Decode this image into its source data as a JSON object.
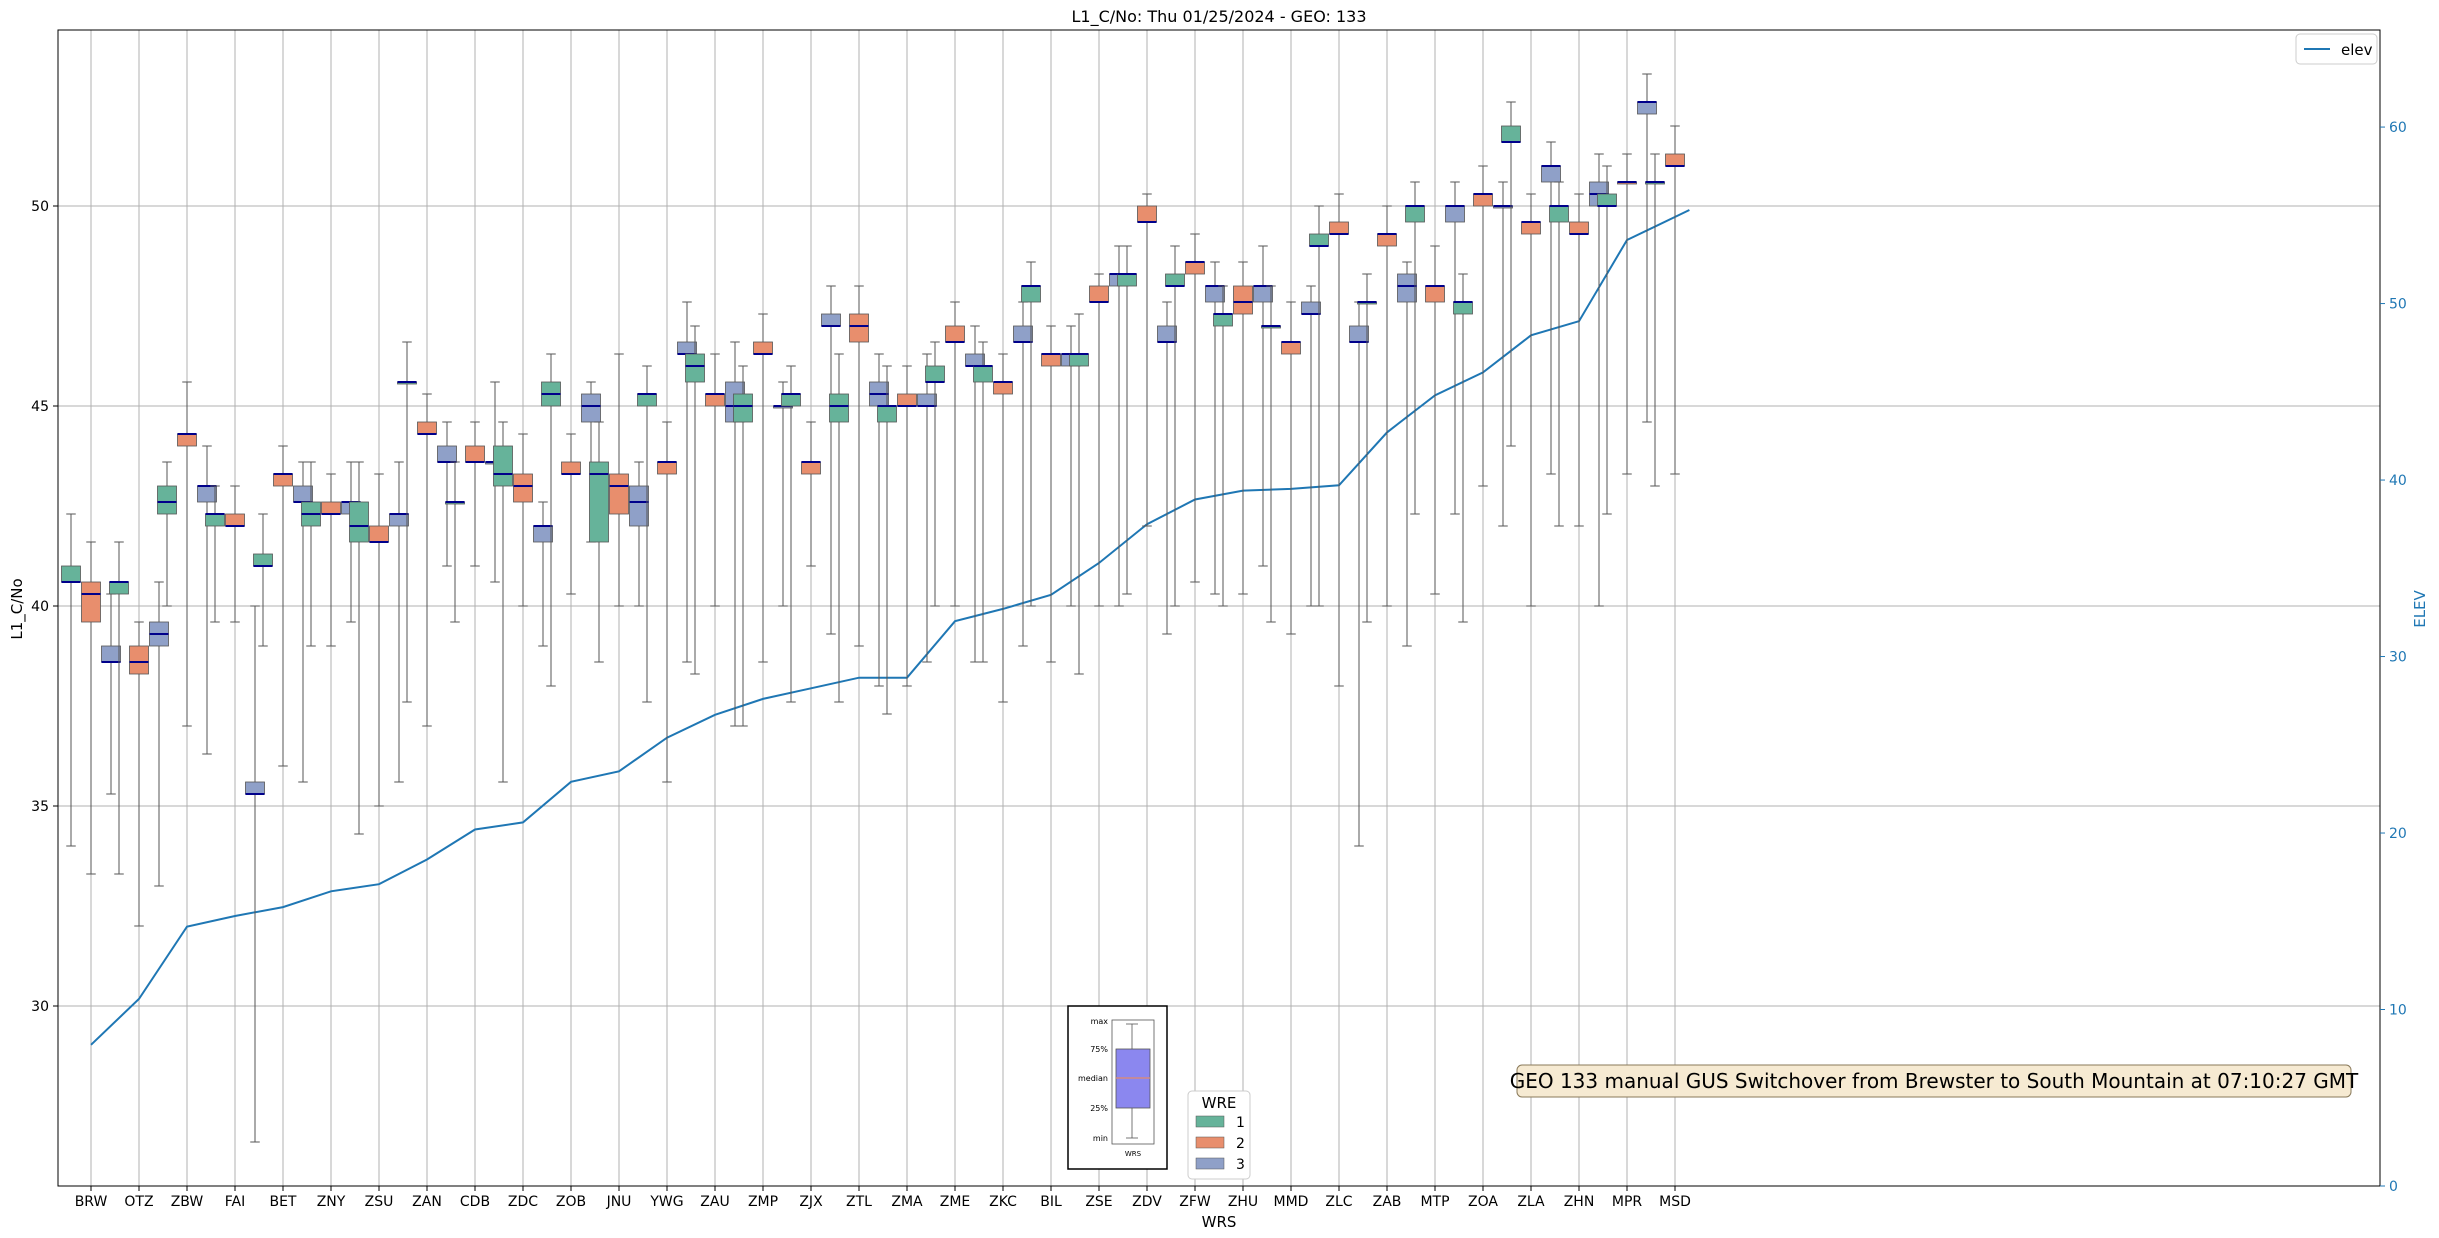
{
  "chart_data": {
    "type": "box",
    "title": "L1_C/No: Thu 01/25/2024 - GEO: 133",
    "xlabel": "WRS",
    "ylabel": "L1_C/No",
    "y2label": "ELEV",
    "ylim": [
      25.5,
      54.4
    ],
    "y2lim": [
      0,
      65.5
    ],
    "yticks": [
      30,
      35,
      40,
      45,
      50
    ],
    "y2ticks": [
      0,
      10,
      20,
      30,
      40,
      50,
      60
    ],
    "grid": true,
    "categories": [
      "BRW",
      "OTZ",
      "ZBW",
      "FAI",
      "BET",
      "ZNY",
      "ZSU",
      "ZAN",
      "CDB",
      "ZDC",
      "ZOB",
      "JNU",
      "YWG",
      "ZAU",
      "ZMP",
      "ZJX",
      "ZTL",
      "ZMA",
      "ZME",
      "ZKC",
      "BIL",
      "ZSE",
      "ZDV",
      "ZFW",
      "ZHU",
      "MMD",
      "ZLC",
      "ZAB",
      "MTP",
      "ZOA",
      "ZLA",
      "ZHN",
      "MPR",
      "MSD"
    ],
    "wre_colors": {
      "1": "#66b39a",
      "2": "#e88e6d",
      "3": "#8fa0c8"
    },
    "boxes": {
      "BRW": [
        [
          34.0,
          40.6,
          40.6,
          41.0,
          42.3
        ],
        [
          33.3,
          39.6,
          40.3,
          40.6,
          41.6
        ],
        [
          35.3,
          38.6,
          38.6,
          39.0,
          40.3
        ]
      ],
      "OTZ": [
        [
          33.3,
          40.3,
          40.6,
          40.6,
          41.6
        ],
        [
          32.0,
          38.3,
          38.6,
          39.0,
          39.6
        ],
        [
          33.0,
          39.0,
          39.3,
          39.6,
          40.6
        ]
      ],
      "ZBW": [
        [
          40.0,
          42.3,
          42.6,
          43.0,
          43.6
        ],
        [
          37.0,
          44.0,
          44.3,
          44.3,
          45.6
        ],
        [
          36.3,
          42.6,
          43.0,
          43.0,
          44.0
        ]
      ],
      "FAI": [
        [
          39.6,
          42.0,
          42.3,
          42.3,
          43.0
        ],
        [
          39.6,
          42.0,
          42.0,
          42.3,
          43.0
        ],
        [
          26.6,
          35.3,
          35.3,
          35.6,
          40.0
        ]
      ],
      "BET": [
        [
          39.0,
          41.0,
          41.0,
          41.3,
          42.3
        ],
        [
          36.0,
          43.0,
          43.3,
          43.3,
          44.0
        ],
        [
          35.6,
          42.6,
          42.6,
          43.0,
          43.6
        ]
      ],
      "ZNY": [
        [
          39.0,
          42.0,
          42.3,
          42.6,
          43.6
        ],
        [
          39.0,
          42.3,
          42.3,
          42.6,
          43.3
        ],
        [
          39.6,
          42.3,
          42.6,
          42.6,
          43.6
        ]
      ],
      "ZSU": [
        [
          34.3,
          41.6,
          42.0,
          42.6,
          43.6
        ],
        [
          35.0,
          41.6,
          41.6,
          42.0,
          43.3
        ],
        [
          35.6,
          42.0,
          42.3,
          42.3,
          43.6
        ]
      ],
      "ZAN": [
        [
          37.6,
          45.6,
          45.6,
          45.6,
          46.6
        ],
        [
          37.0,
          44.3,
          44.3,
          44.6,
          45.3
        ],
        [
          41.0,
          43.6,
          43.6,
          44.0,
          44.6
        ]
      ],
      "CDB": [
        [
          39.6,
          42.6,
          42.6,
          42.6,
          43.6
        ],
        [
          41.0,
          43.6,
          43.6,
          44.0,
          44.6
        ],
        [
          40.6,
          43.6,
          43.6,
          43.6,
          45.6
        ]
      ],
      "ZDC": [
        [
          35.6,
          43.0,
          43.3,
          44.0,
          44.6
        ],
        [
          40.0,
          42.6,
          43.0,
          43.3,
          44.3
        ],
        [
          39.0,
          41.6,
          42.0,
          42.0,
          42.6
        ]
      ],
      "ZOB": [
        [
          38.0,
          45.0,
          45.3,
          45.6,
          46.3
        ],
        [
          40.3,
          43.3,
          43.3,
          43.6,
          44.3
        ],
        [
          41.6,
          44.6,
          45.0,
          45.3,
          45.6
        ]
      ],
      "JNU": [
        [
          38.6,
          41.6,
          43.3,
          43.6,
          44.6
        ],
        [
          40.0,
          42.3,
          43.0,
          43.3,
          46.3
        ],
        [
          40.0,
          42.0,
          42.6,
          43.0,
          43.6
        ]
      ],
      "YWG": [
        [
          37.6,
          45.0,
          45.3,
          45.3,
          46.0
        ],
        [
          35.6,
          43.3,
          43.6,
          43.6,
          44.6
        ],
        [
          38.6,
          46.3,
          46.3,
          46.6,
          47.6
        ]
      ],
      "ZAU": [
        [
          38.3,
          45.6,
          46.0,
          46.3,
          47.0
        ],
        [
          40.0,
          45.0,
          45.3,
          45.3,
          46.3
        ],
        [
          37.0,
          44.6,
          45.0,
          45.6,
          46.6
        ]
      ],
      "ZMP": [
        [
          37.0,
          44.6,
          45.0,
          45.3,
          46.0
        ],
        [
          38.6,
          46.3,
          46.3,
          46.6,
          47.3
        ],
        [
          40.0,
          45.0,
          45.0,
          45.0,
          45.6
        ]
      ],
      "ZJX": [
        [
          37.6,
          45.0,
          45.3,
          45.3,
          46.0
        ],
        [
          41.0,
          43.3,
          43.6,
          43.6,
          44.6
        ],
        [
          39.3,
          47.0,
          47.0,
          47.3,
          48.0
        ]
      ],
      "ZTL": [
        [
          37.6,
          44.6,
          45.0,
          45.3,
          46.3
        ],
        [
          39.0,
          46.6,
          47.0,
          47.3,
          48.0
        ],
        [
          38.0,
          45.0,
          45.3,
          45.6,
          46.3
        ]
      ],
      "ZMA": [
        [
          37.3,
          44.6,
          45.0,
          45.0,
          46.0
        ],
        [
          38.0,
          45.0,
          45.0,
          45.3,
          46.0
        ],
        [
          38.6,
          45.0,
          45.0,
          45.3,
          46.3
        ]
      ],
      "ZME": [
        [
          40.0,
          45.6,
          45.6,
          46.0,
          46.6
        ],
        [
          40.0,
          46.6,
          46.6,
          47.0,
          47.6
        ],
        [
          38.6,
          46.0,
          46.0,
          46.3,
          47.0
        ]
      ],
      "ZKC": [
        [
          38.6,
          45.6,
          46.0,
          46.0,
          46.6
        ],
        [
          37.6,
          45.3,
          45.6,
          45.6,
          46.3
        ],
        [
          39.0,
          46.6,
          46.6,
          47.0,
          47.6
        ]
      ],
      "BIL": [
        [
          40.0,
          47.6,
          48.0,
          48.0,
          48.6
        ],
        [
          38.6,
          46.0,
          46.3,
          46.3,
          47.0
        ],
        [
          40.0,
          46.0,
          46.3,
          46.3,
          47.0
        ]
      ],
      "ZSE": [
        [
          38.3,
          46.0,
          46.3,
          46.3,
          47.3
        ],
        [
          40.0,
          47.6,
          47.6,
          48.0,
          48.3
        ],
        [
          40.0,
          48.0,
          48.3,
          48.3,
          49.0
        ]
      ],
      "ZDV": [
        [
          40.3,
          48.0,
          48.3,
          48.3,
          49.0
        ],
        [
          42.0,
          49.6,
          49.6,
          50.0,
          50.3
        ],
        [
          39.3,
          46.6,
          46.6,
          47.0,
          47.6
        ]
      ],
      "ZFW": [
        [
          40.0,
          48.0,
          48.0,
          48.3,
          49.0
        ],
        [
          40.6,
          48.3,
          48.6,
          48.6,
          49.3
        ],
        [
          40.3,
          47.6,
          48.0,
          48.0,
          48.6
        ]
      ],
      "ZHU": [
        [
          40.0,
          47.0,
          47.3,
          47.3,
          48.0
        ],
        [
          40.3,
          47.3,
          47.6,
          48.0,
          48.6
        ],
        [
          41.0,
          47.6,
          48.0,
          48.0,
          49.0
        ]
      ],
      "MMD": [
        [
          39.6,
          47.0,
          47.0,
          47.0,
          48.0
        ],
        [
          39.3,
          46.3,
          46.6,
          46.6,
          47.6
        ],
        [
          40.0,
          47.3,
          47.3,
          47.6,
          48.0
        ]
      ],
      "ZLC": [
        [
          40.0,
          49.0,
          49.0,
          49.3,
          50.0
        ],
        [
          38.0,
          49.3,
          49.3,
          49.6,
          50.3
        ],
        [
          34.0,
          46.6,
          46.6,
          47.0,
          47.6
        ]
      ],
      "ZAB": [
        [
          39.6,
          47.6,
          47.6,
          47.6,
          48.3
        ],
        [
          40.0,
          49.0,
          49.3,
          49.3,
          50.0
        ],
        [
          39.0,
          47.6,
          48.0,
          48.3,
          48.6
        ]
      ],
      "MTP": [
        [
          42.3,
          49.6,
          50.0,
          50.0,
          50.6
        ],
        [
          40.3,
          47.6,
          48.0,
          48.0,
          49.0
        ],
        [
          42.3,
          49.6,
          50.0,
          50.0,
          50.6
        ]
      ],
      "ZOA": [
        [
          39.6,
          47.3,
          47.6,
          47.6,
          48.3
        ],
        [
          43.0,
          50.0,
          50.3,
          50.3,
          51.0
        ],
        [
          42.0,
          50.0,
          50.0,
          50.0,
          50.6
        ]
      ],
      "ZLA": [
        [
          44.0,
          51.6,
          51.6,
          52.0,
          52.6
        ],
        [
          40.0,
          49.3,
          49.6,
          49.6,
          50.3
        ],
        [
          43.3,
          50.6,
          51.0,
          51.0,
          51.6
        ]
      ],
      "ZHN": [
        [
          42.0,
          49.6,
          50.0,
          50.0,
          50.6
        ],
        [
          42.0,
          49.3,
          49.3,
          49.6,
          50.3
        ],
        [
          40.0,
          50.0,
          50.3,
          50.6,
          51.3
        ]
      ],
      "MPR": [
        [
          42.3,
          50.0,
          50.0,
          50.3,
          51.0
        ],
        [
          43.3,
          50.6,
          50.6,
          50.6,
          51.3
        ],
        [
          44.6,
          52.3,
          52.6,
          52.6,
          53.3
        ]
      ],
      "MSD": [
        [
          43.0,
          50.6,
          50.6,
          50.6,
          51.3
        ],
        [
          43.3,
          51.0,
          51.0,
          51.3,
          52.0
        ]
      ]
    },
    "elev_series": {
      "name": "elev",
      "color": "#1f77b4",
      "values": [
        8.0,
        10.6,
        14.7,
        15.3,
        15.8,
        16.7,
        17.1,
        18.5,
        20.2,
        20.6,
        22.9,
        23.5,
        25.4,
        26.7,
        27.6,
        28.2,
        28.8,
        28.8,
        32.0,
        32.7,
        33.5,
        35.3,
        37.5,
        38.9,
        39.4,
        39.5,
        39.7,
        42.7,
        44.8,
        46.1,
        48.2,
        49.0,
        53.6,
        55.3
      ]
    },
    "elev_xpos": [
      0,
      1,
      2,
      3,
      4,
      5,
      6,
      7,
      8,
      9,
      10,
      11,
      12,
      13,
      14,
      15,
      16,
      17,
      18,
      19,
      20,
      21,
      22,
      23,
      24,
      25,
      26,
      27,
      28,
      29,
      30,
      31,
      32,
      33.3
    ],
    "annotation": "GEO 133 manual GUS Switchover from Brewster to South Mountain at 07:10:27 GMT",
    "legend_elev": "elev",
    "legend_wre": {
      "title": "WRE",
      "labels": [
        "1",
        "2",
        "3"
      ]
    },
    "explainer": {
      "labels": [
        "max",
        "75%",
        "median",
        "25%",
        "min"
      ],
      "xlabel": "WRS"
    }
  }
}
